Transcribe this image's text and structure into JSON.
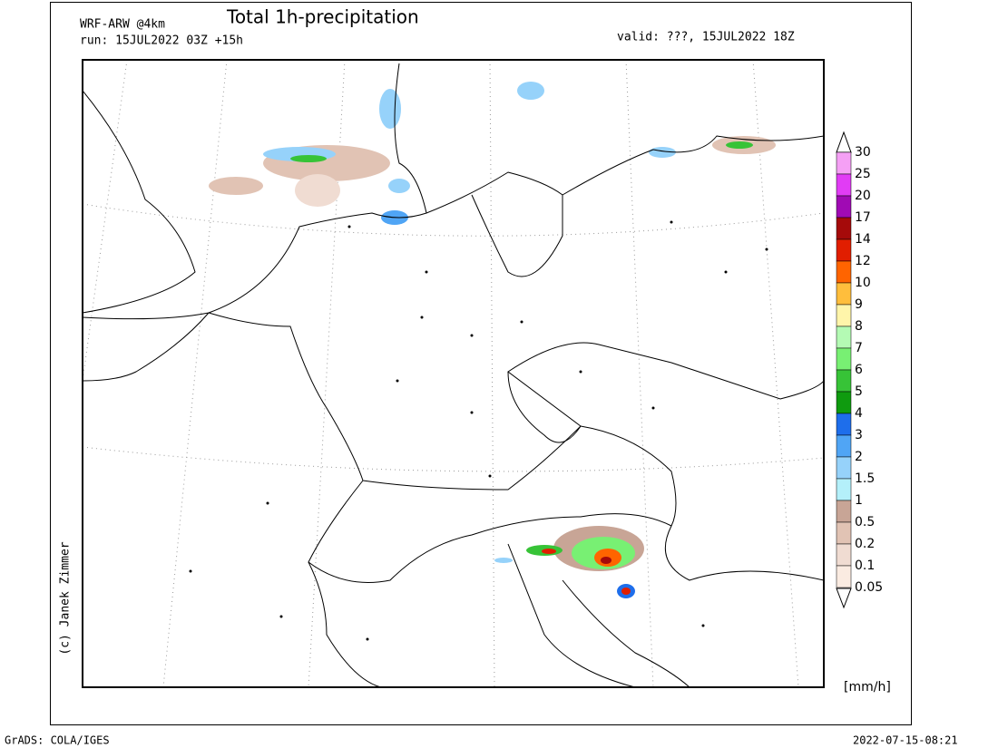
{
  "header": {
    "model": "WRF-ARW @4km",
    "title": "Total 1h-precipitation",
    "run": "run: 15JUL2022 03Z +15h",
    "valid": "valid: ???, 15JUL2022 18Z"
  },
  "credit": "(c) Janek Zimmer",
  "legend": {
    "unit": "[mm/h]",
    "levels": [
      {
        "label": "30",
        "color": "#ffffff"
      },
      {
        "label": "25",
        "color": "#f5a0f5"
      },
      {
        "label": "20",
        "color": "#e13cf5"
      },
      {
        "label": "17",
        "color": "#a00ab4"
      },
      {
        "label": "14",
        "color": "#a50a0a"
      },
      {
        "label": "12",
        "color": "#e11e00"
      },
      {
        "label": "10",
        "color": "#ff6400"
      },
      {
        "label": "9",
        "color": "#ffbe3c"
      },
      {
        "label": "8",
        "color": "#fff5aa"
      },
      {
        "label": "7",
        "color": "#b4fab4"
      },
      {
        "label": "6",
        "color": "#78f073"
      },
      {
        "label": "5",
        "color": "#37c337"
      },
      {
        "label": "4",
        "color": "#0f9b0f"
      },
      {
        "label": "3",
        "color": "#1e6eeb"
      },
      {
        "label": "2",
        "color": "#50a5f5"
      },
      {
        "label": "1.5",
        "color": "#96d2fa"
      },
      {
        "label": "1",
        "color": "#b4f0fa"
      },
      {
        "label": "0.5",
        "color": "#c8a596"
      },
      {
        "label": "0.2",
        "color": "#e1c3b4"
      },
      {
        "label": "0.1",
        "color": "#f0dcd2"
      },
      {
        "label": "0.05",
        "color": "#faebe1"
      }
    ]
  },
  "footer": {
    "left": "GrADS: COLA/IGES",
    "right": "2022-07-15-08:21"
  }
}
